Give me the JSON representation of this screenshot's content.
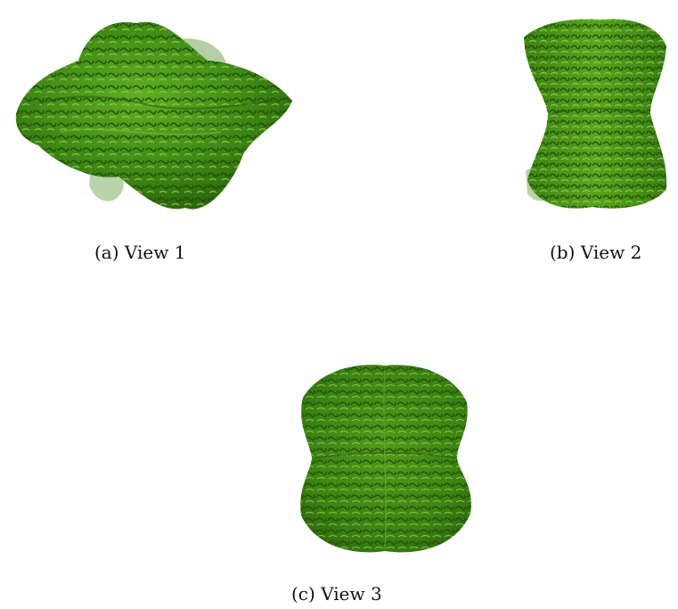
{
  "figure": {
    "panels": [
      {
        "id": "a",
        "caption": "(a) View 1"
      },
      {
        "id": "b",
        "caption": "(b) View 2"
      },
      {
        "id": "c",
        "caption": "(c) View 3"
      }
    ],
    "colors": {
      "density_dark": "#2f6b0e",
      "density_mid": "#4f9a1b",
      "density_light": "#7cc23a",
      "density_faded": "#9cbf85"
    }
  }
}
